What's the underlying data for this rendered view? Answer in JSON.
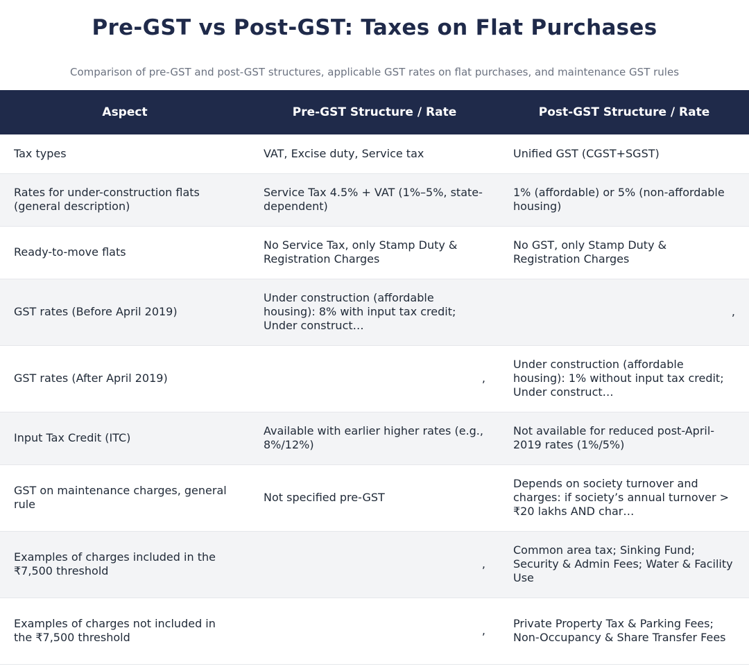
{
  "title": "Pre-GST vs Post-GST: Taxes on Flat Purchases",
  "subtitle": "Comparison of pre-GST and post-GST structures, applicable GST rates on flat purchases, and maintenance GST rules",
  "table": {
    "headers": [
      "Aspect",
      "Pre-GST Structure / Rate",
      "Post-GST Structure / Rate"
    ],
    "rows": [
      {
        "aspect": "Tax types",
        "pre": "VAT, Excise duty, Service tax",
        "post": "Unified GST (CGST+SGST)"
      },
      {
        "aspect": "Rates for under-construction flats (general description)",
        "pre": "Service Tax 4.5% + VAT (1%–5%, state-dependent)",
        "post": "1% (affordable) or 5% (non-affordable housing)"
      },
      {
        "aspect": "Ready-to-move flats",
        "pre": "No Service Tax, only Stamp Duty & Registration Charges",
        "post": "No GST, only Stamp Duty & Registration Charges"
      },
      {
        "aspect": "GST rates (Before April 2019)",
        "pre": "Under construction (affordable housing): 8% with input tax credit; Under construct…",
        "post": ","
      },
      {
        "aspect": "GST rates (After April 2019)",
        "pre": ",",
        "post": "Under construction (affordable housing): 1% without input tax credit; Under construct…"
      },
      {
        "aspect": "Input Tax Credit (ITC)",
        "pre": "Available with earlier higher rates (e.g., 8%/12%)",
        "post": "Not available for reduced post-April-2019 rates (1%/5%)"
      },
      {
        "aspect": "GST on maintenance charges, general rule",
        "pre": "Not specified pre-GST",
        "post": "Depends on society turnover and charges: if society’s annual turnover > ₹20 lakhs AND char…"
      },
      {
        "aspect": "Examples of charges included in the ₹7,500 threshold",
        "pre": ",",
        "post": "Common area tax; Sinking Fund; Security & Admin Fees; Water & Facility Use"
      },
      {
        "aspect": "Examples of charges not included in the ₹7,500 threshold",
        "pre": ",",
        "post": "Private Property Tax & Parking Fees; Non-Occupancy & Share Transfer Fees"
      }
    ]
  }
}
